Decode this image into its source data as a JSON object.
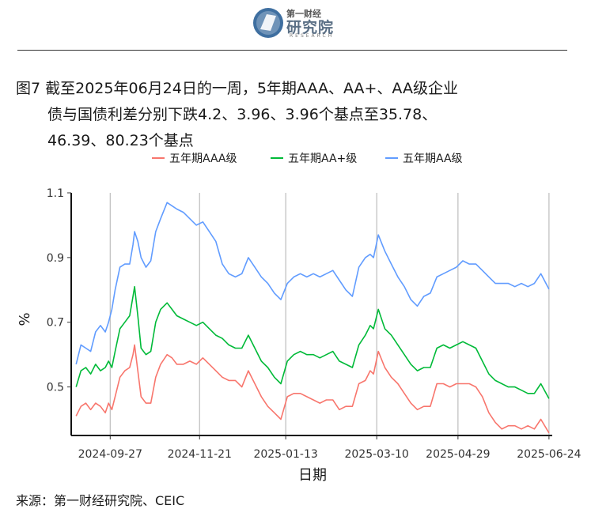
{
  "header": {
    "logo_cn": "第一财经",
    "logo_main": "研究院",
    "logo_en": "RESEARCH"
  },
  "title": {
    "line1": "图7  截至2025年06月24日的一周，5年期AAA、AA+、AA级企业",
    "line2": "债与国债利差分别下跌4.2、3.96、3.96个基点至35.78、",
    "line3": "46.39、80.23个基点"
  },
  "source": "来源：第一财经研究院、CEIC",
  "chart_data": {
    "type": "line",
    "xlabel": "日期",
    "ylabel": "%",
    "ylim": [
      0.35,
      1.1
    ],
    "yticks": [
      0.5,
      0.7,
      0.9,
      1.1
    ],
    "ytick_labels": [
      "0.5",
      "0.7",
      "0.9",
      "1.1"
    ],
    "xlim": [
      "2024-09-03",
      "2025-06-26"
    ],
    "xticks": [
      "2024-09-27",
      "2024-11-21",
      "2025-01-13",
      "2025-03-10",
      "2025-04-29",
      "2025-06-24"
    ],
    "grid": "vertical lines at x ticks",
    "legend_position": "top",
    "series": [
      {
        "name": "五年期AAA级",
        "color": "#F8766D",
        "points": [
          [
            "2024-09-06",
            0.41
          ],
          [
            "2024-09-09",
            0.44
          ],
          [
            "2024-09-12",
            0.45
          ],
          [
            "2024-09-15",
            0.43
          ],
          [
            "2024-09-18",
            0.45
          ],
          [
            "2024-09-21",
            0.44
          ],
          [
            "2024-09-24",
            0.42
          ],
          [
            "2024-09-26",
            0.45
          ],
          [
            "2024-09-28",
            0.43
          ],
          [
            "2024-09-30",
            0.47
          ],
          [
            "2024-10-03",
            0.53
          ],
          [
            "2024-10-06",
            0.55
          ],
          [
            "2024-10-09",
            0.56
          ],
          [
            "2024-10-11",
            0.6
          ],
          [
            "2024-10-12",
            0.63
          ],
          [
            "2024-10-14",
            0.55
          ],
          [
            "2024-10-16",
            0.47
          ],
          [
            "2024-10-19",
            0.45
          ],
          [
            "2024-10-22",
            0.45
          ],
          [
            "2024-10-25",
            0.53
          ],
          [
            "2024-10-28",
            0.57
          ],
          [
            "2024-11-01",
            0.6
          ],
          [
            "2024-11-04",
            0.59
          ],
          [
            "2024-11-07",
            0.57
          ],
          [
            "2024-11-11",
            0.57
          ],
          [
            "2024-11-15",
            0.58
          ],
          [
            "2024-11-19",
            0.57
          ],
          [
            "2024-11-23",
            0.59
          ],
          [
            "2024-11-27",
            0.57
          ],
          [
            "2024-12-01",
            0.55
          ],
          [
            "2024-12-05",
            0.53
          ],
          [
            "2024-12-09",
            0.52
          ],
          [
            "2024-12-13",
            0.52
          ],
          [
            "2024-12-17",
            0.5
          ],
          [
            "2024-12-21",
            0.55
          ],
          [
            "2024-12-25",
            0.51
          ],
          [
            "2024-12-29",
            0.47
          ],
          [
            "2025-01-02",
            0.44
          ],
          [
            "2025-01-06",
            0.42
          ],
          [
            "2025-01-10",
            0.4
          ],
          [
            "2025-01-14",
            0.47
          ],
          [
            "2025-01-18",
            0.48
          ],
          [
            "2025-01-22",
            0.48
          ],
          [
            "2025-01-26",
            0.47
          ],
          [
            "2025-01-30",
            0.46
          ],
          [
            "2025-02-03",
            0.45
          ],
          [
            "2025-02-07",
            0.46
          ],
          [
            "2025-02-11",
            0.46
          ],
          [
            "2025-02-15",
            0.43
          ],
          [
            "2025-02-19",
            0.44
          ],
          [
            "2025-02-23",
            0.44
          ],
          [
            "2025-02-27",
            0.51
          ],
          [
            "2025-03-03",
            0.52
          ],
          [
            "2025-03-06",
            0.55
          ],
          [
            "2025-03-08",
            0.54
          ],
          [
            "2025-03-11",
            0.61
          ],
          [
            "2025-03-15",
            0.56
          ],
          [
            "2025-03-19",
            0.53
          ],
          [
            "2025-03-23",
            0.51
          ],
          [
            "2025-03-27",
            0.48
          ],
          [
            "2025-03-31",
            0.45
          ],
          [
            "2025-04-04",
            0.43
          ],
          [
            "2025-04-08",
            0.44
          ],
          [
            "2025-04-12",
            0.44
          ],
          [
            "2025-04-16",
            0.51
          ],
          [
            "2025-04-20",
            0.51
          ],
          [
            "2025-04-24",
            0.5
          ],
          [
            "2025-04-28",
            0.51
          ],
          [
            "2025-05-02",
            0.51
          ],
          [
            "2025-05-06",
            0.51
          ],
          [
            "2025-05-10",
            0.5
          ],
          [
            "2025-05-14",
            0.47
          ],
          [
            "2025-05-18",
            0.42
          ],
          [
            "2025-05-22",
            0.39
          ],
          [
            "2025-05-26",
            0.37
          ],
          [
            "2025-05-30",
            0.38
          ],
          [
            "2025-06-03",
            0.38
          ],
          [
            "2025-06-07",
            0.37
          ],
          [
            "2025-06-11",
            0.38
          ],
          [
            "2025-06-15",
            0.37
          ],
          [
            "2025-06-19",
            0.4
          ],
          [
            "2025-06-24",
            0.3578
          ]
        ]
      },
      {
        "name": "五年期AA+级",
        "color": "#00BA38",
        "points": [
          [
            "2024-09-06",
            0.5
          ],
          [
            "2024-09-09",
            0.55
          ],
          [
            "2024-09-12",
            0.56
          ],
          [
            "2024-09-15",
            0.54
          ],
          [
            "2024-09-18",
            0.57
          ],
          [
            "2024-09-21",
            0.55
          ],
          [
            "2024-09-24",
            0.56
          ],
          [
            "2024-09-26",
            0.58
          ],
          [
            "2024-09-28",
            0.56
          ],
          [
            "2024-09-30",
            0.61
          ],
          [
            "2024-10-03",
            0.68
          ],
          [
            "2024-10-06",
            0.7
          ],
          [
            "2024-10-09",
            0.72
          ],
          [
            "2024-10-11",
            0.78
          ],
          [
            "2024-10-12",
            0.81
          ],
          [
            "2024-10-14",
            0.72
          ],
          [
            "2024-10-16",
            0.62
          ],
          [
            "2024-10-19",
            0.6
          ],
          [
            "2024-10-22",
            0.61
          ],
          [
            "2024-10-25",
            0.7
          ],
          [
            "2024-10-28",
            0.74
          ],
          [
            "2024-11-01",
            0.76
          ],
          [
            "2024-11-04",
            0.74
          ],
          [
            "2024-11-07",
            0.72
          ],
          [
            "2024-11-11",
            0.71
          ],
          [
            "2024-11-15",
            0.7
          ],
          [
            "2024-11-19",
            0.69
          ],
          [
            "2024-11-23",
            0.7
          ],
          [
            "2024-11-27",
            0.68
          ],
          [
            "2024-12-01",
            0.66
          ],
          [
            "2024-12-05",
            0.65
          ],
          [
            "2024-12-09",
            0.63
          ],
          [
            "2024-12-13",
            0.62
          ],
          [
            "2024-12-17",
            0.62
          ],
          [
            "2024-12-21",
            0.66
          ],
          [
            "2024-12-25",
            0.62
          ],
          [
            "2024-12-29",
            0.58
          ],
          [
            "2025-01-02",
            0.56
          ],
          [
            "2025-01-06",
            0.53
          ],
          [
            "2025-01-10",
            0.51
          ],
          [
            "2025-01-14",
            0.58
          ],
          [
            "2025-01-18",
            0.6
          ],
          [
            "2025-01-22",
            0.61
          ],
          [
            "2025-01-26",
            0.6
          ],
          [
            "2025-01-30",
            0.6
          ],
          [
            "2025-02-03",
            0.59
          ],
          [
            "2025-02-07",
            0.6
          ],
          [
            "2025-02-11",
            0.61
          ],
          [
            "2025-02-15",
            0.58
          ],
          [
            "2025-02-19",
            0.57
          ],
          [
            "2025-02-23",
            0.56
          ],
          [
            "2025-02-27",
            0.63
          ],
          [
            "2025-03-03",
            0.66
          ],
          [
            "2025-03-06",
            0.69
          ],
          [
            "2025-03-08",
            0.68
          ],
          [
            "2025-03-11",
            0.74
          ],
          [
            "2025-03-15",
            0.68
          ],
          [
            "2025-03-19",
            0.66
          ],
          [
            "2025-03-23",
            0.63
          ],
          [
            "2025-03-27",
            0.6
          ],
          [
            "2025-03-31",
            0.57
          ],
          [
            "2025-04-04",
            0.55
          ],
          [
            "2025-04-08",
            0.56
          ],
          [
            "2025-04-12",
            0.56
          ],
          [
            "2025-04-16",
            0.62
          ],
          [
            "2025-04-20",
            0.63
          ],
          [
            "2025-04-24",
            0.62
          ],
          [
            "2025-04-28",
            0.63
          ],
          [
            "2025-05-02",
            0.64
          ],
          [
            "2025-05-06",
            0.63
          ],
          [
            "2025-05-10",
            0.62
          ],
          [
            "2025-05-14",
            0.58
          ],
          [
            "2025-05-18",
            0.54
          ],
          [
            "2025-05-22",
            0.52
          ],
          [
            "2025-05-26",
            0.51
          ],
          [
            "2025-05-30",
            0.5
          ],
          [
            "2025-06-03",
            0.5
          ],
          [
            "2025-06-07",
            0.49
          ],
          [
            "2025-06-11",
            0.48
          ],
          [
            "2025-06-15",
            0.48
          ],
          [
            "2025-06-19",
            0.51
          ],
          [
            "2025-06-24",
            0.4639
          ]
        ]
      },
      {
        "name": "五年期AA级",
        "color": "#619CFF",
        "points": [
          [
            "2024-09-06",
            0.57
          ],
          [
            "2024-09-09",
            0.63
          ],
          [
            "2024-09-12",
            0.62
          ],
          [
            "2024-09-15",
            0.61
          ],
          [
            "2024-09-18",
            0.67
          ],
          [
            "2024-09-21",
            0.69
          ],
          [
            "2024-09-24",
            0.67
          ],
          [
            "2024-09-26",
            0.7
          ],
          [
            "2024-09-28",
            0.74
          ],
          [
            "2024-09-30",
            0.8
          ],
          [
            "2024-10-03",
            0.87
          ],
          [
            "2024-10-06",
            0.88
          ],
          [
            "2024-10-09",
            0.88
          ],
          [
            "2024-10-11",
            0.94
          ],
          [
            "2024-10-12",
            0.98
          ],
          [
            "2024-10-14",
            0.95
          ],
          [
            "2024-10-16",
            0.9
          ],
          [
            "2024-10-19",
            0.87
          ],
          [
            "2024-10-22",
            0.89
          ],
          [
            "2024-10-25",
            0.98
          ],
          [
            "2024-10-28",
            1.02
          ],
          [
            "2024-11-01",
            1.07
          ],
          [
            "2024-11-04",
            1.06
          ],
          [
            "2024-11-07",
            1.05
          ],
          [
            "2024-11-11",
            1.04
          ],
          [
            "2024-11-15",
            1.02
          ],
          [
            "2024-11-19",
            1.0
          ],
          [
            "2024-11-23",
            1.01
          ],
          [
            "2024-11-27",
            0.98
          ],
          [
            "2024-12-01",
            0.95
          ],
          [
            "2024-12-05",
            0.88
          ],
          [
            "2024-12-09",
            0.85
          ],
          [
            "2024-12-13",
            0.84
          ],
          [
            "2024-12-17",
            0.85
          ],
          [
            "2024-12-21",
            0.9
          ],
          [
            "2024-12-25",
            0.87
          ],
          [
            "2024-12-29",
            0.84
          ],
          [
            "2025-01-02",
            0.82
          ],
          [
            "2025-01-06",
            0.79
          ],
          [
            "2025-01-10",
            0.77
          ],
          [
            "2025-01-14",
            0.82
          ],
          [
            "2025-01-18",
            0.84
          ],
          [
            "2025-01-22",
            0.85
          ],
          [
            "2025-01-26",
            0.84
          ],
          [
            "2025-01-30",
            0.85
          ],
          [
            "2025-02-03",
            0.84
          ],
          [
            "2025-02-07",
            0.85
          ],
          [
            "2025-02-11",
            0.86
          ],
          [
            "2025-02-15",
            0.83
          ],
          [
            "2025-02-19",
            0.8
          ],
          [
            "2025-02-23",
            0.78
          ],
          [
            "2025-02-27",
            0.87
          ],
          [
            "2025-03-03",
            0.9
          ],
          [
            "2025-03-06",
            0.91
          ],
          [
            "2025-03-08",
            0.9
          ],
          [
            "2025-03-11",
            0.97
          ],
          [
            "2025-03-15",
            0.92
          ],
          [
            "2025-03-19",
            0.88
          ],
          [
            "2025-03-23",
            0.84
          ],
          [
            "2025-03-27",
            0.81
          ],
          [
            "2025-03-31",
            0.77
          ],
          [
            "2025-04-04",
            0.75
          ],
          [
            "2025-04-08",
            0.78
          ],
          [
            "2025-04-12",
            0.79
          ],
          [
            "2025-04-16",
            0.84
          ],
          [
            "2025-04-20",
            0.85
          ],
          [
            "2025-04-24",
            0.86
          ],
          [
            "2025-04-28",
            0.87
          ],
          [
            "2025-05-02",
            0.89
          ],
          [
            "2025-05-06",
            0.88
          ],
          [
            "2025-05-10",
            0.88
          ],
          [
            "2025-05-14",
            0.86
          ],
          [
            "2025-05-18",
            0.84
          ],
          [
            "2025-05-22",
            0.82
          ],
          [
            "2025-05-26",
            0.82
          ],
          [
            "2025-05-30",
            0.82
          ],
          [
            "2025-06-03",
            0.81
          ],
          [
            "2025-06-07",
            0.82
          ],
          [
            "2025-06-11",
            0.81
          ],
          [
            "2025-06-15",
            0.82
          ],
          [
            "2025-06-19",
            0.85
          ],
          [
            "2025-06-24",
            0.8023
          ]
        ]
      }
    ]
  }
}
